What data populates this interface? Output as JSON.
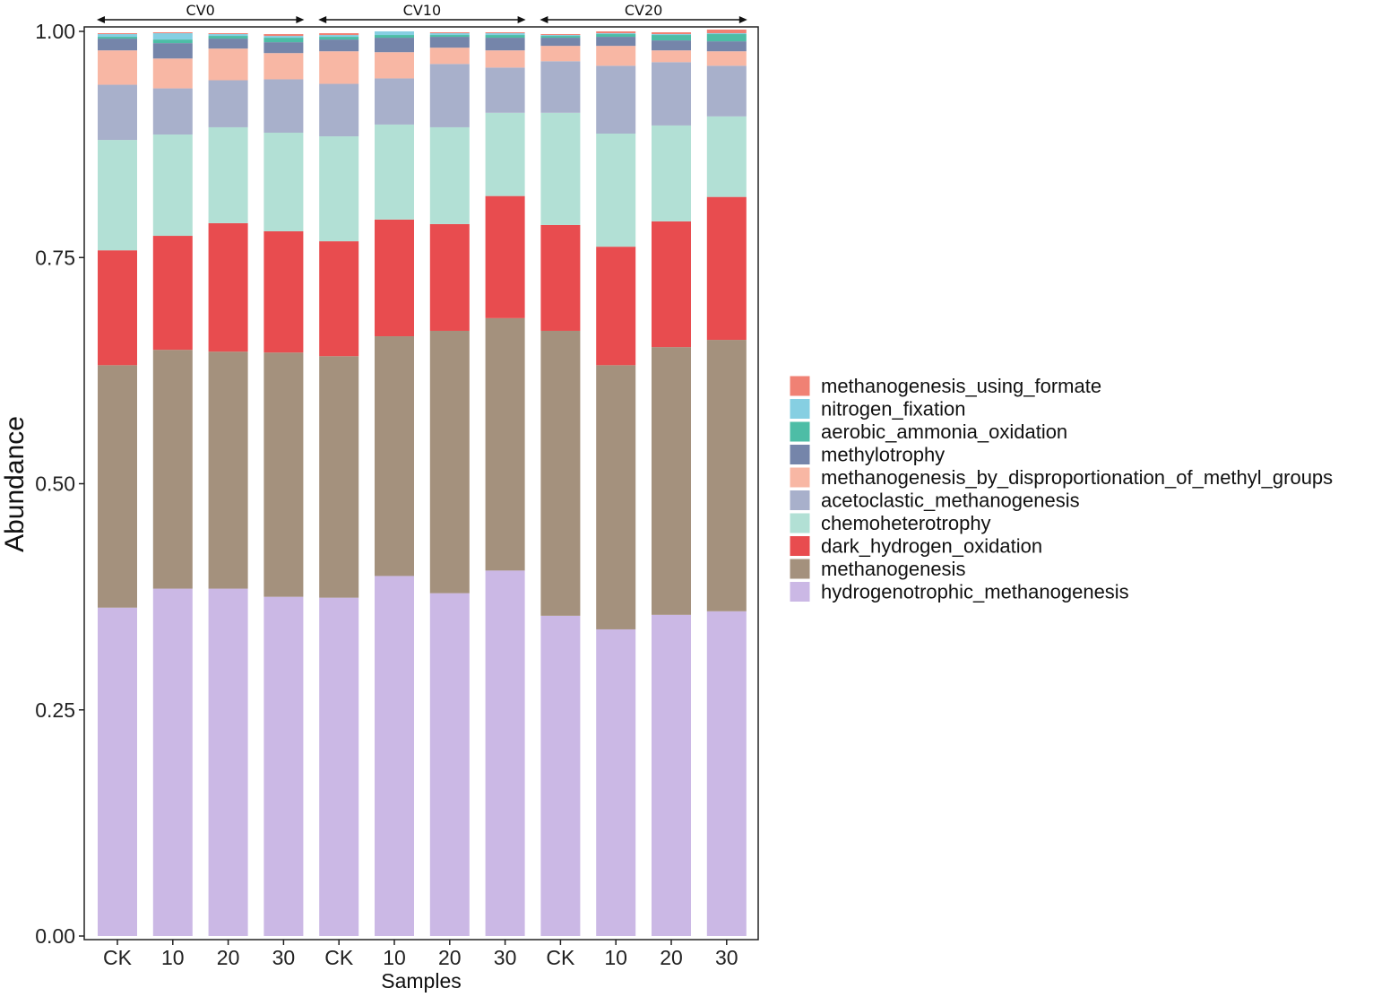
{
  "chart_data": {
    "type": "bar",
    "stacked": true,
    "xlabel": "Samples",
    "ylabel": "Abundance",
    "ylim": [
      0,
      1
    ],
    "yticks": [
      "0.00",
      "0.25",
      "0.50",
      "0.75",
      "1.00"
    ],
    "legend_position": "right",
    "groups": [
      {
        "label": "CV0",
        "samples": [
          "CK",
          "10",
          "20",
          "30"
        ]
      },
      {
        "label": "CV10",
        "samples": [
          "CK",
          "10",
          "20",
          "30"
        ]
      },
      {
        "label": "CV20",
        "samples": [
          "CK",
          "10",
          "20",
          "30"
        ]
      }
    ],
    "categories": [
      "CK",
      "10",
      "20",
      "30",
      "CK",
      "10",
      "20",
      "30",
      "CK",
      "10",
      "20",
      "30"
    ],
    "series": [
      {
        "name": "hydrogenotrophic_methanogenesis",
        "color": "#cbb8e5",
        "values": [
          0.363,
          0.384,
          0.384,
          0.375,
          0.374,
          0.398,
          0.379,
          0.404,
          0.354,
          0.339,
          0.355,
          0.359
        ]
      },
      {
        "name": "methanogenesis",
        "color": "#a4917d",
        "values": [
          0.268,
          0.264,
          0.262,
          0.27,
          0.267,
          0.265,
          0.29,
          0.279,
          0.315,
          0.292,
          0.296,
          0.3
        ]
      },
      {
        "name": "dark_hydrogen_oxidation",
        "color": "#e84c4f",
        "values": [
          0.127,
          0.126,
          0.142,
          0.134,
          0.127,
          0.129,
          0.118,
          0.135,
          0.117,
          0.131,
          0.139,
          0.158
        ]
      },
      {
        "name": "chemoheterotrophy",
        "color": "#b2e0d5",
        "values": [
          0.122,
          0.112,
          0.106,
          0.109,
          0.116,
          0.105,
          0.107,
          0.092,
          0.124,
          0.125,
          0.106,
          0.089
        ]
      },
      {
        "name": "acetoclastic_methanogenesis",
        "color": "#a8b0cb",
        "values": [
          0.061,
          0.051,
          0.052,
          0.059,
          0.058,
          0.051,
          0.07,
          0.05,
          0.057,
          0.075,
          0.07,
          0.056
        ]
      },
      {
        "name": "methanogenesis_by_disproportionation_of_methyl_groups",
        "color": "#f8b7a4",
        "values": [
          0.038,
          0.033,
          0.035,
          0.029,
          0.036,
          0.029,
          0.018,
          0.019,
          0.017,
          0.022,
          0.013,
          0.016
        ]
      },
      {
        "name": "methylotrophy",
        "color": "#7585aa",
        "values": [
          0.013,
          0.017,
          0.011,
          0.012,
          0.013,
          0.016,
          0.012,
          0.014,
          0.009,
          0.01,
          0.011,
          0.011
        ]
      },
      {
        "name": "aerobic_ammonia_oxidation",
        "color": "#4dbda6",
        "values": [
          0.002,
          0.004,
          0.003,
          0.005,
          0.003,
          0.003,
          0.002,
          0.003,
          0.002,
          0.003,
          0.006,
          0.008
        ]
      },
      {
        "name": "nitrogen_fixation",
        "color": "#86cfe2",
        "values": [
          0.003,
          0.007,
          0.002,
          0.002,
          0.002,
          0.004,
          0.002,
          0.002,
          0.001,
          0.001,
          0.001,
          0.001
        ]
      },
      {
        "name": "methanogenesis_using_formate",
        "color": "#f08174",
        "values": [
          0.001,
          0.001,
          0.001,
          0.002,
          0.002,
          0.0,
          0.001,
          0.001,
          0.001,
          0.002,
          0.002,
          0.004
        ]
      }
    ]
  }
}
